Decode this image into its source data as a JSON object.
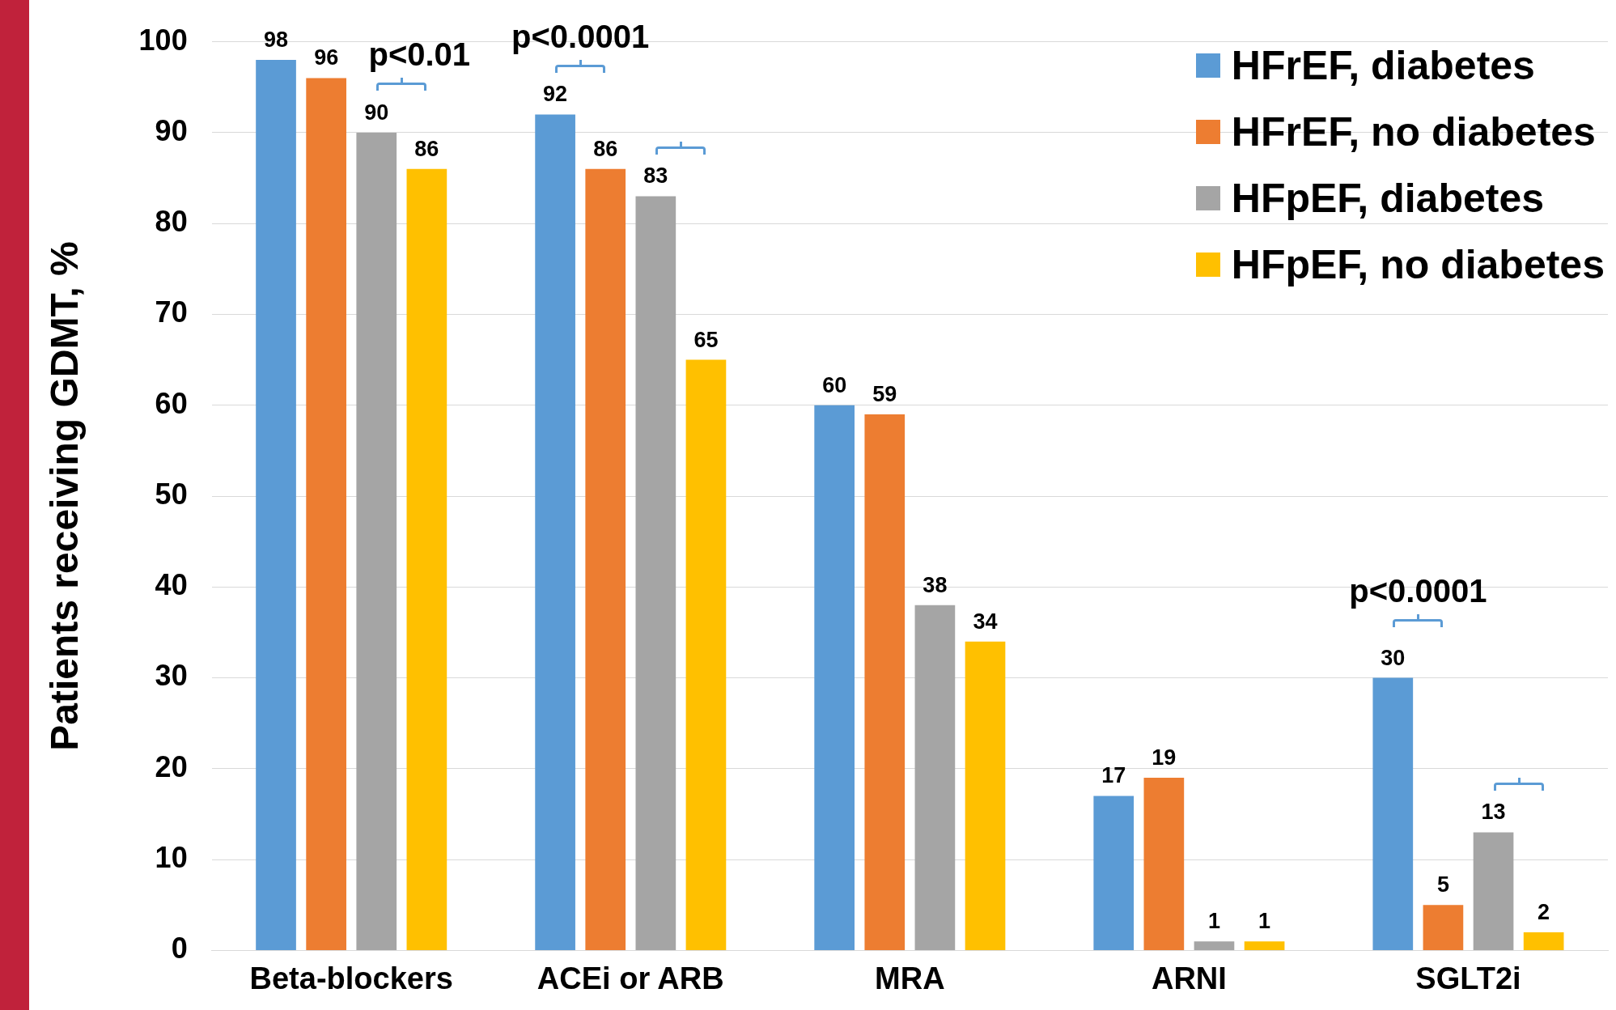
{
  "chart_data": {
    "type": "bar",
    "ylabel": "Patients receiving GDMT, %",
    "categories": [
      "Beta-blockers",
      "ACEi or ARB",
      "MRA",
      "ARNI",
      "SGLT2i"
    ],
    "series": [
      {
        "name": "HFrEF, diabetes",
        "color": "#5b9bd5",
        "values": [
          98,
          92,
          60,
          17,
          30
        ]
      },
      {
        "name": "HFrEF, no diabetes",
        "color": "#ed7d31",
        "values": [
          96,
          86,
          59,
          19,
          5
        ]
      },
      {
        "name": "HFpEF, diabetes",
        "color": "#a5a5a5",
        "values": [
          90,
          83,
          38,
          1,
          13
        ]
      },
      {
        "name": "HFpEF, no diabetes",
        "color": "#ffc000",
        "values": [
          86,
          65,
          34,
          1,
          2
        ]
      }
    ],
    "ylim": [
      0,
      100
    ],
    "yticks": [
      0,
      10,
      20,
      30,
      40,
      50,
      60,
      70,
      80,
      90,
      100
    ],
    "grid": "y",
    "legend": "top right",
    "data_labels": true,
    "annotations": [
      "p<0.01",
      "p<0.0001",
      "p<0.0001"
    ]
  }
}
